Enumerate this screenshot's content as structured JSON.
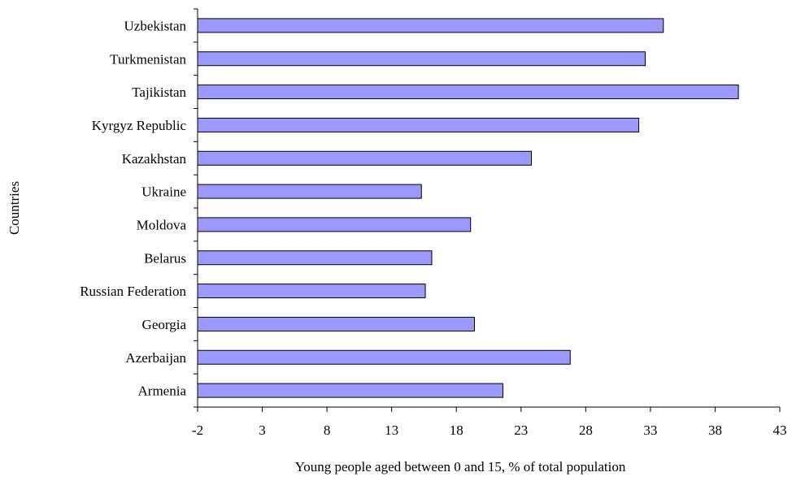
{
  "chart_data": {
    "type": "bar",
    "orientation": "horizontal",
    "title": "",
    "xlabel": "Young people aged between 0 and 15, % of total population",
    "ylabel": "Countries",
    "categories": [
      "Uzbekistan",
      "Turkmenistan",
      "Tajikistan",
      "Kyrgyz Republic",
      "Kazakhstan",
      "Ukraine",
      "Moldova",
      "Belarus",
      "Russian Federation",
      "Georgia",
      "Azerbaijan",
      "Armenia"
    ],
    "values": [
      34.0,
      32.6,
      39.8,
      32.1,
      23.8,
      15.3,
      19.1,
      16.1,
      15.6,
      19.4,
      26.8,
      21.6
    ],
    "xlim": [
      -2,
      43
    ],
    "xticks": [
      "-2",
      "3",
      "8",
      "13",
      "18",
      "23",
      "28",
      "33",
      "38",
      "43"
    ],
    "grid": false,
    "legend": "none",
    "bar_color": "#9999ff",
    "bar_edge_color": "#000000"
  }
}
